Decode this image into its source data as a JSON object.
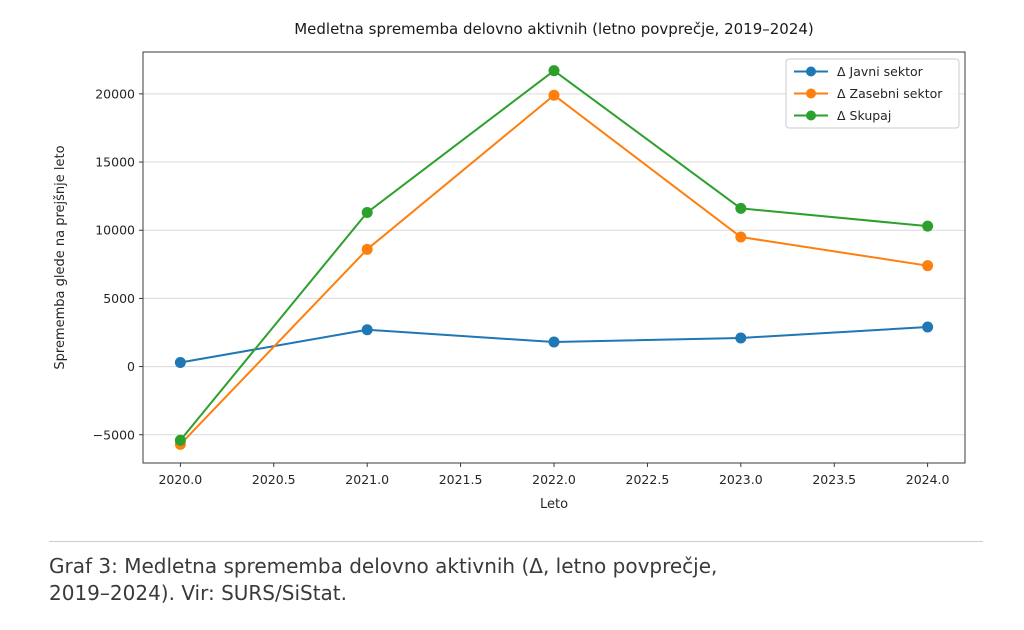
{
  "chart_data": {
    "type": "line",
    "title": "Medletna sprememba delovno aktivnih (letno povprečje, 2019–2024)",
    "xlabel": "Leto",
    "ylabel": "Sprememba glede na prejšnje leto",
    "x": [
      2020,
      2021,
      2022,
      2023,
      2024
    ],
    "series": [
      {
        "name": "Δ Javni sektor",
        "color": "#1f77b4",
        "values": [
          300,
          2700,
          1800,
          2100,
          2900
        ]
      },
      {
        "name": "Δ Zasebni sektor",
        "color": "#ff7f0e",
        "values": [
          -5700,
          8600,
          19900,
          9500,
          7400
        ]
      },
      {
        "name": "Δ Skupaj",
        "color": "#2ca02c",
        "values": [
          -5400,
          11300,
          21700,
          11600,
          10300
        ]
      }
    ],
    "xlim": [
      2019.8,
      2024.2
    ],
    "ylim": [
      -7070,
      23070
    ],
    "xticks": [
      2020.0,
      2020.5,
      2021.0,
      2021.5,
      2022.0,
      2022.5,
      2023.0,
      2023.5,
      2024.0
    ],
    "xtick_labels": [
      "2020.0",
      "2020.5",
      "2021.0",
      "2021.5",
      "2022.0",
      "2022.5",
      "2023.0",
      "2023.5",
      "2024.0"
    ],
    "yticks": [
      -5000,
      0,
      5000,
      10000,
      15000,
      20000
    ],
    "ytick_labels": [
      "−5000",
      "0",
      "5000",
      "10000",
      "15000",
      "20000"
    ],
    "grid": "horizontal",
    "legend_position": "upper right"
  },
  "caption": {
    "line1": "Graf 3: Medletna sprememba delovno aktivnih (Δ, letno povprečje,",
    "line2": "2019–2024). Vir: SURS/SiStat."
  }
}
